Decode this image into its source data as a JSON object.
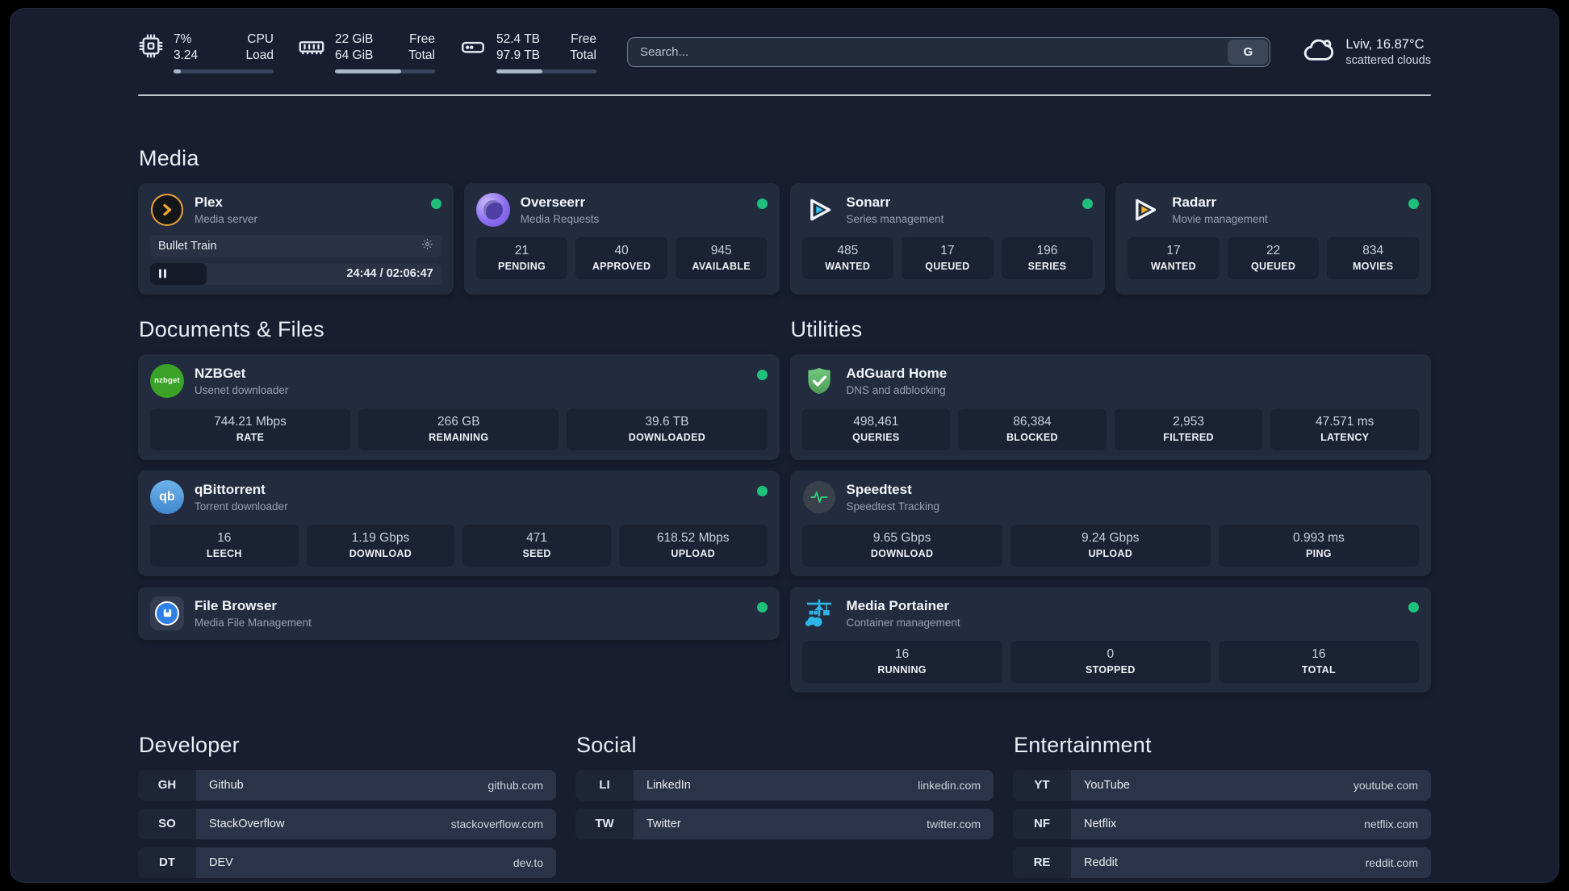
{
  "colors": {
    "status_online": "#1ec07b",
    "accent_plex": "#e9a13b",
    "accent_sonarr": "#35c5f4",
    "accent_radarr": "#f7b32b",
    "accent_adguard": "#67b279",
    "accent_portainer": "#2db5e8"
  },
  "topbar": {
    "cpu": {
      "icon": "cpu-chip-icon",
      "value_top": "7%",
      "value_bottom": "3.24",
      "label_top": "CPU",
      "label_bottom": "Load",
      "progress_percent": 7
    },
    "ram": {
      "icon": "ram-stick-icon",
      "value_top": "22 GiB",
      "value_bottom": "64 GiB",
      "label_top": "Free",
      "label_bottom": "Total",
      "progress_percent": 66
    },
    "disk": {
      "icon": "hard-drive-icon",
      "value_top": "52.4 TB",
      "value_bottom": "97.9 TB",
      "label_top": "Free",
      "label_bottom": "Total",
      "progress_percent": 46
    },
    "search": {
      "placeholder": "Search...",
      "engine_label": "G"
    },
    "weather": {
      "icon": "cloud-icon",
      "line1": "Lviv, 16.87°C",
      "line2": "scattered clouds"
    }
  },
  "media": {
    "heading": "Media",
    "apps": [
      {
        "icon": "plex-icon",
        "name": "Plex",
        "subtitle": "Media server",
        "online": true,
        "player": {
          "title": "Bullet Train",
          "time": "24:44 / 02:06:47",
          "progress_percent": 19.5
        }
      },
      {
        "icon": "overseerr-icon",
        "name": "Overseerr",
        "subtitle": "Media Requests",
        "online": true,
        "stats": [
          {
            "value": "21",
            "label": "PENDING"
          },
          {
            "value": "40",
            "label": "APPROVED"
          },
          {
            "value": "945",
            "label": "AVAILABLE"
          }
        ]
      },
      {
        "icon": "sonarr-icon",
        "name": "Sonarr",
        "subtitle": "Series management",
        "online": true,
        "stats": [
          {
            "value": "485",
            "label": "WANTED"
          },
          {
            "value": "17",
            "label": "QUEUED"
          },
          {
            "value": "196",
            "label": "SERIES"
          }
        ]
      },
      {
        "icon": "radarr-icon",
        "name": "Radarr",
        "subtitle": "Movie management",
        "online": true,
        "stats": [
          {
            "value": "17",
            "label": "WANTED"
          },
          {
            "value": "22",
            "label": "QUEUED"
          },
          {
            "value": "834",
            "label": "MOVIES"
          }
        ]
      }
    ]
  },
  "documents": {
    "heading": "Documents & Files",
    "apps": [
      {
        "icon": "nzbget-icon",
        "icon_text": "nzbget",
        "name": "NZBGet",
        "subtitle": "Usenet downloader",
        "online": true,
        "stats": [
          {
            "value": "744.21 Mbps",
            "label": "RATE"
          },
          {
            "value": "266 GB",
            "label": "REMAINING"
          },
          {
            "value": "39.6 TB",
            "label": "DOWNLOADED"
          }
        ]
      },
      {
        "icon": "qbittorrent-icon",
        "icon_text": "qb",
        "name": "qBittorrent",
        "subtitle": "Torrent downloader",
        "online": true,
        "stats": [
          {
            "value": "16",
            "label": "LEECH"
          },
          {
            "value": "1.19 Gbps",
            "label": "DOWNLOAD"
          },
          {
            "value": "471",
            "label": "SEED"
          },
          {
            "value": "618.52 Mbps",
            "label": "UPLOAD"
          }
        ]
      },
      {
        "icon": "filebrowser-icon",
        "name": "File Browser",
        "subtitle": "Media File Management",
        "online": true
      }
    ]
  },
  "utilities": {
    "heading": "Utilities",
    "apps": [
      {
        "icon": "adguard-shield-icon",
        "name": "AdGuard Home",
        "subtitle": "DNS and adblocking",
        "stats": [
          {
            "value": "498,461",
            "label": "QUERIES"
          },
          {
            "value": "86,384",
            "label": "BLOCKED"
          },
          {
            "value": "2,953",
            "label": "FILTERED"
          },
          {
            "value": "47.571 ms",
            "label": "LATENCY"
          }
        ]
      },
      {
        "icon": "speedtest-pulse-icon",
        "name": "Speedtest",
        "subtitle": "Speedtest Tracking",
        "stats": [
          {
            "value": "9.65 Gbps",
            "label": "DOWNLOAD"
          },
          {
            "value": "9.24 Gbps",
            "label": "UPLOAD"
          },
          {
            "value": "0.993 ms",
            "label": "PING"
          }
        ]
      },
      {
        "icon": "portainer-crane-icon",
        "name": "Media Portainer",
        "subtitle": "Container management",
        "online": true,
        "stats": [
          {
            "value": "16",
            "label": "RUNNING"
          },
          {
            "value": "0",
            "label": "STOPPED"
          },
          {
            "value": "16",
            "label": "TOTAL"
          }
        ]
      }
    ]
  },
  "developer": {
    "heading": "Developer",
    "links": [
      {
        "prefix": "GH",
        "name": "Github",
        "url": "github.com"
      },
      {
        "prefix": "SO",
        "name": "StackOverflow",
        "url": "stackoverflow.com"
      },
      {
        "prefix": "DT",
        "name": "DEV",
        "url": "dev.to"
      }
    ]
  },
  "social": {
    "heading": "Social",
    "links": [
      {
        "prefix": "LI",
        "name": "LinkedIn",
        "url": "linkedin.com"
      },
      {
        "prefix": "TW",
        "name": "Twitter",
        "url": "twitter.com"
      }
    ]
  },
  "entertainment": {
    "heading": "Entertainment",
    "links": [
      {
        "prefix": "YT",
        "name": "YouTube",
        "url": "youtube.com"
      },
      {
        "prefix": "NF",
        "name": "Netflix",
        "url": "netflix.com"
      },
      {
        "prefix": "RE",
        "name": "Reddit",
        "url": "reddit.com"
      }
    ]
  }
}
